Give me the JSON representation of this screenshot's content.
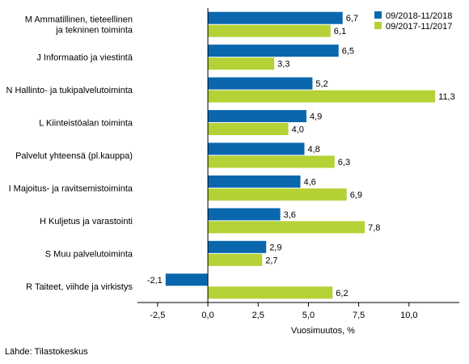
{
  "chart_data": {
    "type": "bar",
    "orientation": "horizontal",
    "categories": [
      [
        "M Ammatillinen, tieteellinen",
        "ja tekninen toiminta"
      ],
      [
        "J Informaatio ja viestintä"
      ],
      [
        "N Hallinto- ja tukipalvelutoiminta"
      ],
      [
        "L Kiinteistöalan toiminta"
      ],
      [
        "Palvelut yhteensä (pl.kauppa)"
      ],
      [
        "I Majoitus- ja ravitsemistoiminta"
      ],
      [
        "H Kuljetus ja varastointi"
      ],
      [
        "S Muu palvelutoiminta"
      ],
      [
        "R Taiteet, viihde ja virkistys"
      ]
    ],
    "series": [
      {
        "name": "09/2018-11/2018",
        "color": "#0a67ad",
        "values": [
          6.7,
          6.5,
          5.2,
          4.9,
          4.8,
          4.6,
          3.6,
          2.9,
          -2.1
        ],
        "labels": [
          "6,7",
          "6,5",
          "5,2",
          "4,9",
          "4,8",
          "4,6",
          "3,6",
          "2,9",
          "-2,1"
        ]
      },
      {
        "name": "09/2017-11/2017",
        "color": "#b4d236",
        "values": [
          6.1,
          3.3,
          11.3,
          4.0,
          6.3,
          6.9,
          7.8,
          2.7,
          6.2
        ],
        "labels": [
          "6,1",
          "3,3",
          "11,3",
          "4,0",
          "6,3",
          "6,9",
          "7,8",
          "2,7",
          "6,2"
        ]
      }
    ],
    "xlim": [
      -3.5,
      12.5
    ],
    "xticks": [
      -2.5,
      0.0,
      2.5,
      5.0,
      7.5,
      10.0
    ],
    "xtick_labels": [
      "-2,5",
      "0,0",
      "2,5",
      "5,0",
      "7,5",
      "10,0"
    ],
    "xlabel": "Vuosimuutos, %",
    "legend_position": "top-right",
    "grid": false
  },
  "source": "Lähde: Tilastokeskus"
}
